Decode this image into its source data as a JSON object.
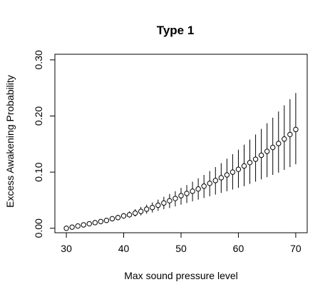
{
  "chart_data": {
    "type": "scatter",
    "title": "Type 1",
    "xlabel": "Max sound pressure level",
    "ylabel": "Excess Awakening Probability",
    "xlim": [
      28,
      72
    ],
    "ylim": [
      -0.008,
      0.31
    ],
    "x_ticks": [
      30,
      40,
      50,
      60,
      70
    ],
    "x_tick_labels": [
      "30",
      "40",
      "50",
      "60",
      "70"
    ],
    "y_ticks": [
      0.0,
      0.1,
      0.2,
      0.3
    ],
    "y_tick_labels": [
      "0.00",
      "0.10",
      "0.20",
      "0.30"
    ],
    "grid": false,
    "legend": "none",
    "series": [
      {
        "x": [
          30,
          31,
          32,
          33,
          34,
          35,
          36,
          37,
          38,
          39,
          40,
          41,
          42,
          43,
          44,
          45,
          46,
          47,
          48,
          49,
          50,
          51,
          52,
          53,
          54,
          55,
          56,
          57,
          58,
          59,
          60,
          61,
          62,
          63,
          64,
          65,
          66,
          67,
          68,
          69,
          70
        ],
        "y": [
          0.0,
          0.002,
          0.004,
          0.006,
          0.008,
          0.01,
          0.012,
          0.014,
          0.017,
          0.019,
          0.022,
          0.024,
          0.027,
          0.03,
          0.034,
          0.037,
          0.041,
          0.045,
          0.049,
          0.053,
          0.058,
          0.062,
          0.066,
          0.07,
          0.075,
          0.08,
          0.085,
          0.09,
          0.095,
          0.1,
          0.105,
          0.111,
          0.117,
          0.123,
          0.13,
          0.137,
          0.144,
          0.151,
          0.159,
          0.167,
          0.176
        ],
        "lower": [
          0.0,
          0.001,
          0.003,
          0.004,
          0.006,
          0.008,
          0.009,
          0.011,
          0.013,
          0.015,
          0.017,
          0.019,
          0.021,
          0.023,
          0.026,
          0.028,
          0.031,
          0.034,
          0.036,
          0.039,
          0.042,
          0.045,
          0.048,
          0.051,
          0.054,
          0.057,
          0.06,
          0.063,
          0.066,
          0.069,
          0.072,
          0.075,
          0.079,
          0.083,
          0.087,
          0.091,
          0.095,
          0.099,
          0.104,
          0.109,
          0.114
        ],
        "upper": [
          0.0,
          0.003,
          0.005,
          0.008,
          0.01,
          0.012,
          0.015,
          0.018,
          0.021,
          0.024,
          0.027,
          0.03,
          0.034,
          0.038,
          0.042,
          0.046,
          0.051,
          0.056,
          0.061,
          0.066,
          0.072,
          0.077,
          0.083,
          0.089,
          0.095,
          0.102,
          0.109,
          0.116,
          0.124,
          0.132,
          0.14,
          0.149,
          0.158,
          0.167,
          0.177,
          0.187,
          0.197,
          0.208,
          0.219,
          0.23,
          0.241
        ]
      }
    ]
  }
}
